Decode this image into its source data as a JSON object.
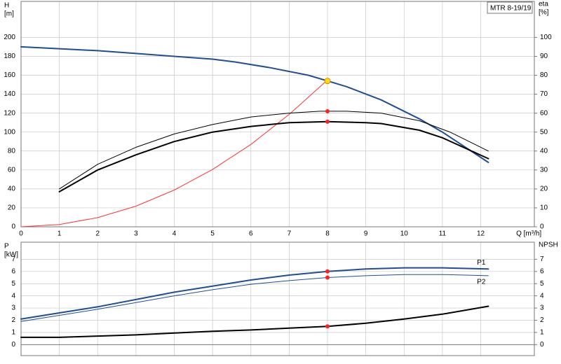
{
  "chart_data": [
    {
      "type": "line",
      "title": "MTR 8-19/19",
      "ylabel": [
        "H",
        "[m]"
      ],
      "y2label": [
        "eta",
        "[%]"
      ],
      "xlabel": "Q [m³/h]",
      "xlim": [
        0,
        13.4
      ],
      "xticks": [
        0,
        1,
        2,
        3,
        4,
        5,
        6,
        7,
        8,
        9,
        10,
        11,
        12
      ],
      "xtick_labels": true,
      "ylim": [
        0,
        238
      ],
      "yticks": [
        0,
        20,
        40,
        60,
        80,
        100,
        120,
        140,
        160,
        180,
        200
      ],
      "y2lim": [
        0,
        119
      ],
      "y2ticks": [
        0,
        10,
        20,
        30,
        40,
        50,
        60,
        70,
        80,
        90,
        100
      ],
      "grid": true,
      "series": [
        {
          "color": "#1f4e96",
          "x": [
            0,
            1,
            2,
            3,
            4,
            5,
            5.6,
            6.5,
            7.5,
            8,
            8.5,
            9.4,
            10.4,
            11,
            12.2
          ],
          "values": [
            190,
            188,
            186,
            183,
            180,
            177,
            174,
            168,
            160,
            154,
            148,
            134,
            114,
            100,
            68
          ]
        },
        {
          "color": "#ff3333",
          "x": [
            0,
            1,
            2,
            3,
            4,
            5,
            6,
            7,
            8
          ],
          "values": [
            0,
            2.4,
            9.7,
            21.8,
            38.8,
            60.5,
            87,
            118.7,
            155
          ]
        },
        {
          "color": "#000000",
          "axis": "y2",
          "x": [
            1,
            2,
            3,
            4,
            5,
            6,
            7,
            7.8,
            8.5,
            9.4,
            10.4,
            11.2,
            12.2
          ],
          "values": [
            20,
            33,
            42,
            49,
            54,
            58,
            60,
            61,
            61,
            60,
            56,
            50,
            40
          ]
        },
        {
          "color": "#000000",
          "axis": "y2",
          "x": [
            1,
            2,
            3,
            4,
            5,
            6,
            7,
            8,
            9,
            9.4,
            10.4,
            11,
            12.2
          ],
          "values": [
            18.5,
            30,
            38,
            45,
            50,
            53,
            55,
            55.5,
            55,
            54.5,
            51,
            47,
            36
          ]
        }
      ],
      "points": [
        {
          "x": 8,
          "y": 61,
          "axis": "y2",
          "color": "#ff2020"
        },
        {
          "x": 8,
          "y": 55.5,
          "axis": "y2",
          "color": "#ff2020"
        },
        {
          "x": 8,
          "y": 154,
          "axis": "y",
          "color": "#ffdd00"
        }
      ]
    },
    {
      "type": "line",
      "ylabel": [
        "P",
        "[kW]"
      ],
      "y2label": [
        "NPSH"
      ],
      "xlim": [
        0,
        13.4
      ],
      "xticks": [
        0,
        1,
        2,
        3,
        4,
        5,
        6,
        7,
        8,
        9,
        10,
        11,
        12
      ],
      "xtick_labels": false,
      "ylim": [
        -0.9,
        8.4
      ],
      "yticks": [
        0,
        1,
        2,
        3,
        4,
        5,
        6,
        7
      ],
      "y2lim": [
        -0.9,
        8.4
      ],
      "y2ticks": [
        0,
        1,
        2,
        3,
        4,
        5,
        6,
        7
      ],
      "grid": true,
      "series": [
        {
          "name": "P1",
          "color": "#1f4e96",
          "x": [
            0,
            1,
            2,
            3,
            4,
            5,
            6,
            7,
            8,
            9,
            10,
            11,
            12.2
          ],
          "values": [
            2.1,
            2.6,
            3.1,
            3.7,
            4.3,
            4.8,
            5.3,
            5.7,
            6.0,
            6.2,
            6.3,
            6.3,
            6.2
          ]
        },
        {
          "name": "P2",
          "color": "#1f4e96",
          "x": [
            0,
            1,
            2,
            3,
            4,
            5,
            6,
            7,
            8,
            9,
            10,
            11,
            12.2
          ],
          "values": [
            1.9,
            2.4,
            2.9,
            3.45,
            4.0,
            4.5,
            4.95,
            5.25,
            5.5,
            5.65,
            5.75,
            5.75,
            5.65
          ]
        },
        {
          "color": "#000000",
          "axis": "y2",
          "x": [
            0,
            1,
            2,
            3,
            4,
            5,
            6,
            7,
            8,
            9,
            10,
            11,
            12.2
          ],
          "values": [
            0.6,
            0.6,
            0.7,
            0.8,
            0.95,
            1.1,
            1.2,
            1.35,
            1.5,
            1.75,
            2.1,
            2.5,
            3.15
          ]
        }
      ],
      "points": [
        {
          "x": 8,
          "y": 6.0,
          "axis": "y",
          "color": "#ff2020"
        },
        {
          "x": 8,
          "y": 5.5,
          "axis": "y",
          "color": "#ff2020"
        },
        {
          "x": 8,
          "y": 1.5,
          "axis": "y2",
          "color": "#ff2020"
        }
      ]
    }
  ]
}
